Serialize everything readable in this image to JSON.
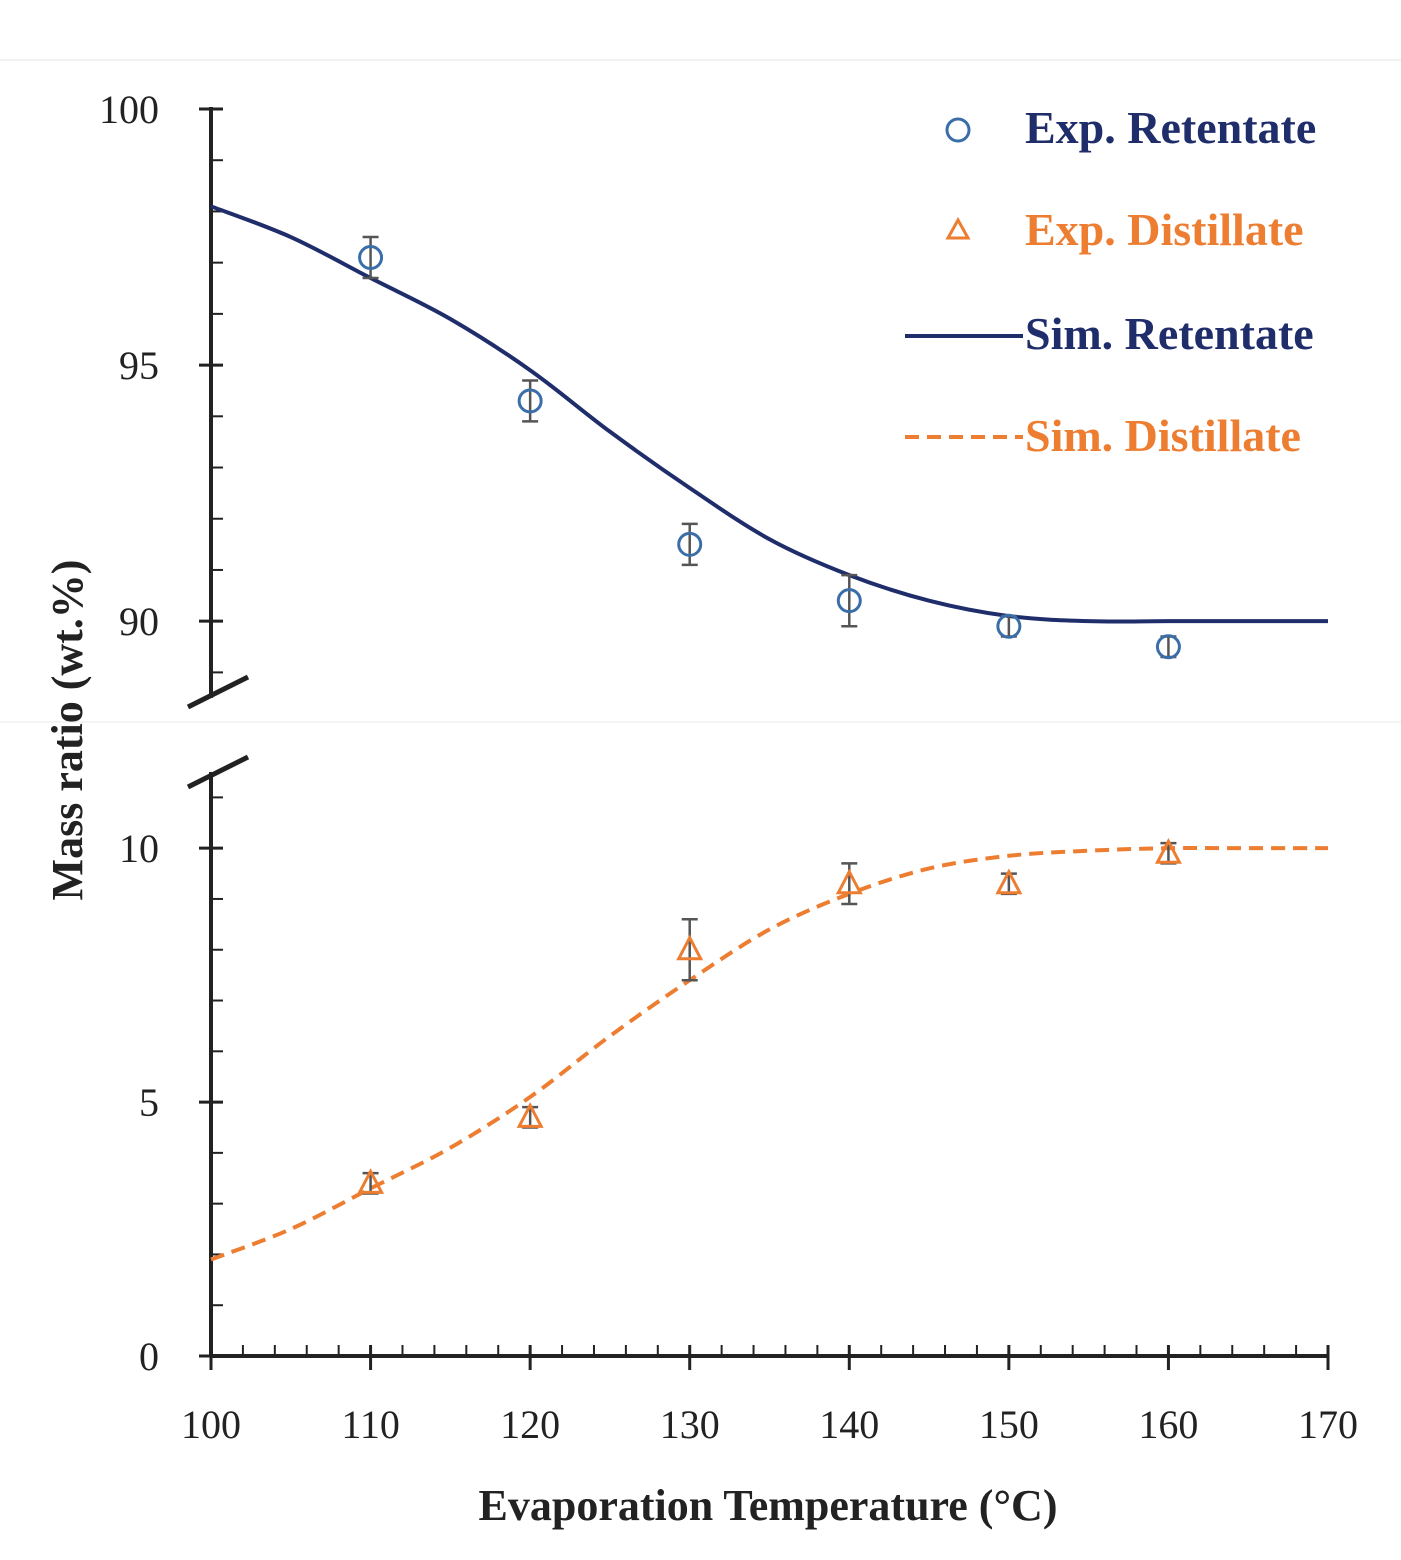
{
  "chart_data": {
    "type": "line",
    "title": "",
    "xlabel": "Evaporation Temperature (°C)",
    "ylabel": "Mass ratio (wt.%)",
    "xlim": [
      100,
      170
    ],
    "x_ticks": [
      "100",
      "110",
      "120",
      "130",
      "140",
      "150",
      "160",
      "170"
    ],
    "y_axis_break": true,
    "upper_panel": {
      "ylim": [
        88.5,
        100
      ],
      "y_ticks": [
        "90",
        "95",
        "100"
      ]
    },
    "lower_panel": {
      "ylim": [
        0,
        11.5
      ],
      "y_ticks": [
        "0",
        "5",
        "10"
      ]
    },
    "series": [
      {
        "name": "Exp. Retentate",
        "kind": "scatter",
        "marker": "circle",
        "panel": "upper",
        "color": "#3a6ea8",
        "x": [
          110,
          120,
          130,
          140,
          150,
          160
        ],
        "y": [
          97.1,
          94.3,
          91.5,
          90.4,
          89.9,
          89.5
        ],
        "error": [
          0.4,
          0.4,
          0.4,
          0.5,
          0.2,
          0.2
        ]
      },
      {
        "name": "Exp. Distillate",
        "kind": "scatter",
        "marker": "triangle",
        "panel": "lower",
        "color": "#ed7d31",
        "x": [
          110,
          120,
          130,
          140,
          150,
          160
        ],
        "y": [
          3.4,
          4.7,
          8.0,
          9.3,
          9.3,
          9.9
        ],
        "error": [
          0.2,
          0.2,
          0.6,
          0.4,
          0.2,
          0.2
        ]
      },
      {
        "name": "Sim. Retentate",
        "kind": "line",
        "style": "solid",
        "panel": "upper",
        "color": "#1f2d6b",
        "x": [
          100,
          105,
          110,
          115,
          120,
          125,
          130,
          135,
          140,
          145,
          150,
          155,
          160,
          165,
          170
        ],
        "y": [
          98.1,
          97.5,
          96.7,
          95.9,
          94.9,
          93.7,
          92.6,
          91.6,
          90.9,
          90.4,
          90.1,
          90.0,
          90.0,
          90.0,
          90.0
        ]
      },
      {
        "name": "Sim. Distillate",
        "kind": "line",
        "style": "dashed",
        "panel": "lower",
        "color": "#ed7d31",
        "x": [
          100,
          105,
          110,
          115,
          120,
          125,
          130,
          135,
          140,
          145,
          150,
          155,
          160,
          165,
          170
        ],
        "y": [
          1.9,
          2.5,
          3.3,
          4.1,
          5.1,
          6.3,
          7.4,
          8.4,
          9.1,
          9.6,
          9.85,
          9.95,
          10.0,
          10.0,
          10.0
        ]
      }
    ],
    "legend": {
      "position": "top-right",
      "entries": [
        "Exp. Retentate",
        "Exp. Distillate",
        "Sim. Retentate",
        "Sim. Distillate"
      ]
    }
  }
}
